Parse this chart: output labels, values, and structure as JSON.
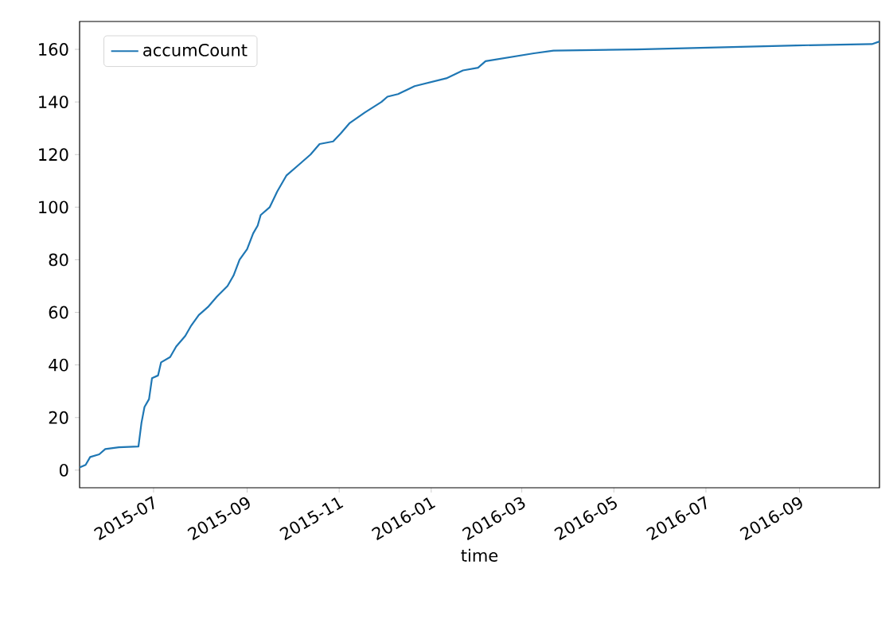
{
  "chart_data": {
    "type": "line",
    "xlabel": "time",
    "x": [
      "2015-05-13",
      "2015-05-17",
      "2015-05-20",
      "2015-05-26",
      "2015-05-30",
      "2015-06-08",
      "2015-06-21",
      "2015-06-23",
      "2015-06-25",
      "2015-06-28",
      "2015-06-30",
      "2015-07-04",
      "2015-07-06",
      "2015-07-12",
      "2015-07-16",
      "2015-07-22",
      "2015-07-26",
      "2015-07-31",
      "2015-08-06",
      "2015-08-12",
      "2015-08-19",
      "2015-08-23",
      "2015-08-27",
      "2015-09-01",
      "2015-09-05",
      "2015-09-08",
      "2015-09-10",
      "2015-09-16",
      "2015-09-21",
      "2015-09-27",
      "2015-10-05",
      "2015-10-13",
      "2015-10-19",
      "2015-10-28",
      "2015-11-02",
      "2015-11-08",
      "2015-11-18",
      "2015-11-29",
      "2015-12-03",
      "2015-12-10",
      "2015-12-21",
      "2016-01-11",
      "2016-01-22",
      "2016-02-01",
      "2016-02-06",
      "2016-02-22",
      "2016-03-09",
      "2016-03-22",
      "2016-05-16",
      "2016-08-30",
      "2016-10-19",
      "2016-10-24"
    ],
    "series": [
      {
        "name": "accumCount",
        "color": "#1f77b4",
        "values": [
          1,
          2,
          5,
          6,
          8,
          8.7,
          9,
          18,
          24,
          27,
          35,
          36,
          41,
          43,
          47,
          51,
          55,
          59,
          62,
          66,
          70,
          74,
          80,
          84,
          90,
          93,
          97,
          100,
          106,
          112,
          116,
          120,
          124,
          125,
          128,
          132,
          136,
          140,
          142,
          143,
          146,
          149,
          152,
          153,
          155.5,
          157,
          158.5,
          159.5,
          160,
          161.5,
          162,
          163
        ]
      }
    ],
    "xlim": [
      "2015-05-13",
      "2016-10-24"
    ],
    "ylim": [
      -6.7,
      170.6
    ],
    "xticks": [
      "2015-07",
      "2015-09",
      "2015-11",
      "2016-01",
      "2016-03",
      "2016-05",
      "2016-07",
      "2016-09"
    ],
    "yticks": [
      0,
      20,
      40,
      60,
      80,
      100,
      120,
      140,
      160
    ],
    "legend": "top left"
  }
}
